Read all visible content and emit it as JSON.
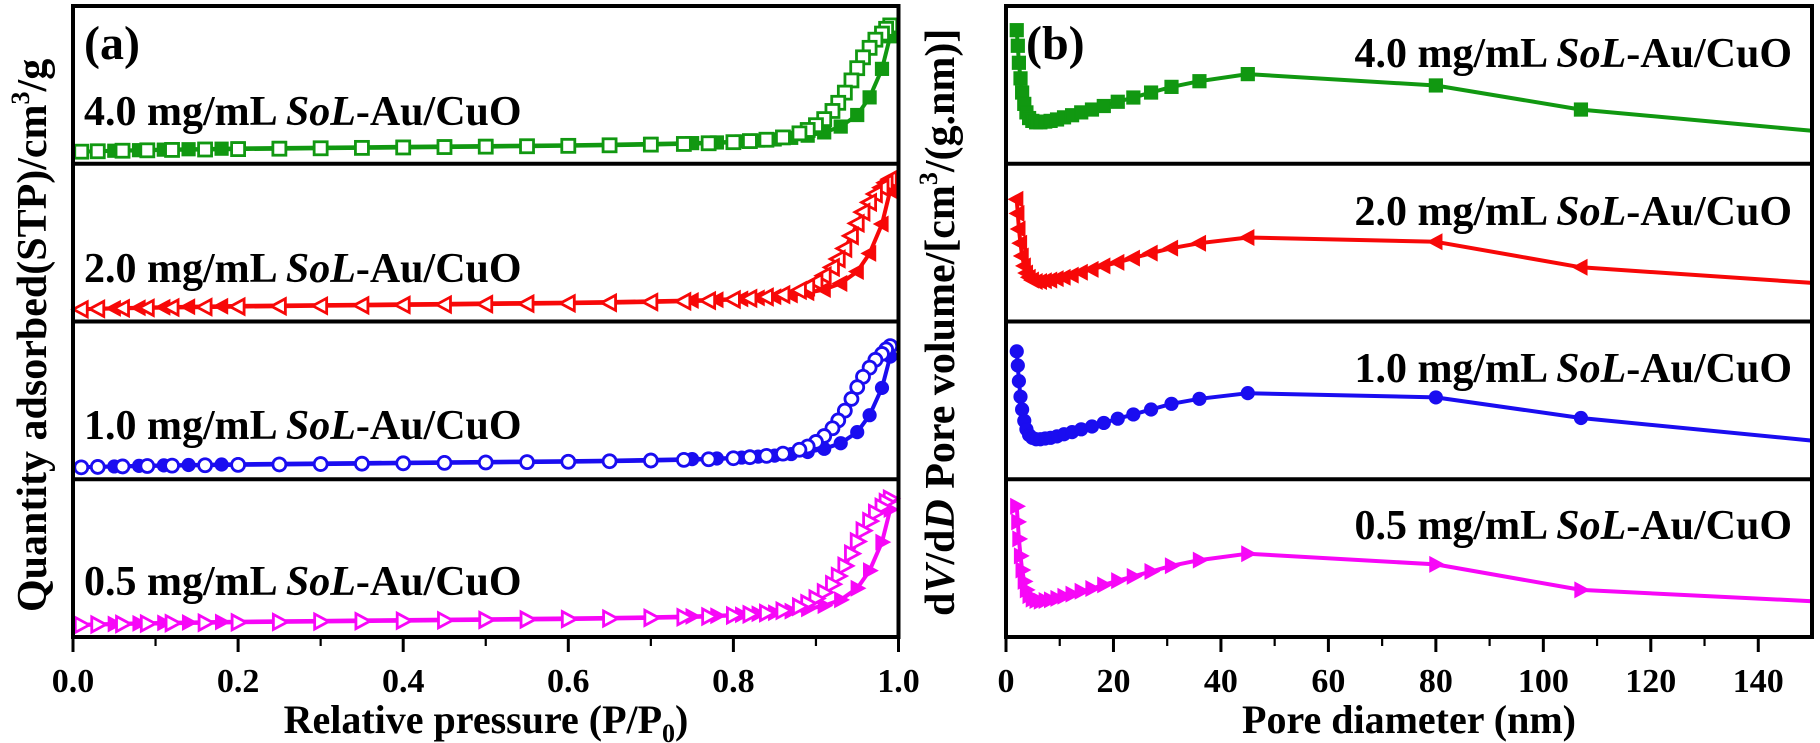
{
  "figure": {
    "background": "#ffffff",
    "panel_a": {
      "letter": "(a)",
      "ylabel": {
        "p1": "Quantity adsorbed(STP)/cm",
        "sup": "3",
        "p2": "/g"
      },
      "xlabel": {
        "p1": "Relative pressure (P/P",
        "sub": "0",
        "p2": ")"
      }
    },
    "panel_b": {
      "letter": "(b)",
      "ylabel": {
        "p1": "d",
        "i1": "V",
        "p2": "/d",
        "i2": "D",
        "p3": " Pore volume/[cm",
        "sup": "3",
        "p4": "/(g.nm)]"
      },
      "xlabel": {
        "p1": "Pore diameter (nm)"
      }
    }
  },
  "chart_data": [
    {
      "type": "line",
      "panel": "a",
      "description": "N2 adsorption-desorption isotherms; four stacked sub-panels sharing the x-axis. No numeric y-axis is shown, so y values are relative (0-1) within each sub-panel. Filled markers = adsorption branch, open markers = desorption branch (hysteresis near P/P0 = 0.9-1.0).",
      "xlabel": "Relative pressure (P/P0)",
      "ylabel": "Quantity adsorbed(STP)/cm3/g",
      "xlim": [
        0.0,
        1.0
      ],
      "xticks": [
        "0.0",
        "0.2",
        "0.4",
        "0.6",
        "0.8",
        "1.0"
      ],
      "minor_tick": 0.1,
      "grid": false,
      "legend": "labels drawn inside each sub-panel",
      "shared": {
        "adsorption": {
          "x": [
            0.01,
            0.03,
            0.05,
            0.06,
            0.08,
            0.09,
            0.11,
            0.12,
            0.14,
            0.16,
            0.18,
            0.2,
            0.25,
            0.3,
            0.35,
            0.4,
            0.45,
            0.5,
            0.55,
            0.6,
            0.65,
            0.7,
            0.75,
            0.78,
            0.81,
            0.83,
            0.85,
            0.87,
            0.89,
            0.91,
            0.93,
            0.95,
            0.965,
            0.98,
            0.99
          ],
          "y": [
            0.03,
            0.034,
            0.037,
            0.039,
            0.041,
            0.043,
            0.045,
            0.046,
            0.048,
            0.05,
            0.052,
            0.054,
            0.057,
            0.06,
            0.063,
            0.066,
            0.069,
            0.072,
            0.075,
            0.078,
            0.082,
            0.087,
            0.093,
            0.098,
            0.105,
            0.112,
            0.12,
            0.132,
            0.148,
            0.172,
            0.215,
            0.3,
            0.43,
            0.64,
            0.88
          ]
        },
        "desorption": {
          "x": [
            0.99,
            0.985,
            0.98,
            0.972,
            0.965,
            0.957,
            0.95,
            0.943,
            0.935,
            0.927,
            0.92,
            0.91,
            0.9,
            0.89,
            0.88,
            0.86,
            0.84,
            0.82,
            0.8,
            0.77,
            0.74,
            0.7,
            0.65,
            0.6,
            0.55,
            0.5,
            0.45,
            0.4,
            0.35,
            0.3,
            0.25,
            0.2,
            0.16,
            0.12,
            0.09,
            0.06,
            0.03,
            0.01
          ],
          "y": [
            0.96,
            0.935,
            0.9,
            0.855,
            0.795,
            0.725,
            0.645,
            0.555,
            0.465,
            0.39,
            0.33,
            0.27,
            0.225,
            0.19,
            0.165,
            0.135,
            0.118,
            0.108,
            0.1,
            0.092,
            0.087,
            0.082,
            0.077,
            0.073,
            0.07,
            0.067,
            0.064,
            0.061,
            0.058,
            0.055,
            0.052,
            0.049,
            0.046,
            0.043,
            0.04,
            0.037,
            0.033,
            0.03
          ]
        }
      },
      "subpanels": [
        {
          "id": "4.0",
          "label_prefix": "4.0 mg/mL ",
          "label_italic": "SoL",
          "label_suffix": "-Au/CuO",
          "color": "#119811",
          "marker": "square",
          "scale": 1.0
        },
        {
          "id": "2.0",
          "label_prefix": "2.0 mg/mL ",
          "label_italic": "SoL",
          "label_suffix": "-Au/CuO",
          "color": "#f70808",
          "marker": "tri_left",
          "scale": 1.03
        },
        {
          "id": "1.0",
          "label_prefix": "1.0 mg/mL ",
          "label_italic": "SoL",
          "label_suffix": "-Au/CuO",
          "color": "#1a0df0",
          "marker": "circle",
          "scale": 0.96
        },
        {
          "id": "0.5",
          "label_prefix": "0.5 mg/mL ",
          "label_italic": "SoL",
          "label_suffix": "-Au/CuO",
          "color": "#f707f7",
          "marker": "tri_right",
          "scale": 1.0
        }
      ]
    },
    {
      "type": "line",
      "panel": "b",
      "description": "BJH pore size distribution curves; four stacked sub-panels sharing the x-axis. No numeric y-axis is shown, so y values are relative (0-1) within each sub-panel. Each curve: sharp drop below ~5 nm, minimum ~6-10 nm, broad maximum ~45 nm, gradual decline to 150 nm.",
      "xlabel": "Pore diameter (nm)",
      "ylabel": "dV/dD Pore volume/[cm3/(g.nm)]",
      "xlim": [
        0,
        150
      ],
      "xticks": [
        "0",
        "20",
        "40",
        "60",
        "80",
        "100",
        "120",
        "140"
      ],
      "minor_tick": 10,
      "grid": false,
      "legend": "labels drawn inside each sub-panel",
      "x": [
        2.0,
        2.2,
        2.4,
        2.7,
        3.0,
        3.4,
        3.8,
        4.3,
        4.9,
        5.6,
        6.4,
        7.3,
        8.3,
        9.5,
        10.8,
        12.3,
        14.0,
        16.0,
        18.2,
        20.8,
        23.7,
        27.0,
        30.8,
        36.0,
        45.0,
        80.0,
        107.0,
        150.0
      ],
      "subpanels": [
        {
          "id": "4.0",
          "label_prefix": "4.0 mg/mL ",
          "label_italic": "SoL",
          "label_suffix": "-Au/CuO",
          "color": "#119811",
          "marker": "square",
          "y": [
            0.9,
            0.79,
            0.67,
            0.56,
            0.46,
            0.38,
            0.32,
            0.28,
            0.26,
            0.25,
            0.25,
            0.255,
            0.26,
            0.27,
            0.285,
            0.3,
            0.32,
            0.34,
            0.365,
            0.395,
            0.425,
            0.46,
            0.5,
            0.54,
            0.59,
            0.51,
            0.34,
            0.19
          ]
        },
        {
          "id": "2.0",
          "label_prefix": "2.0 mg/mL ",
          "label_italic": "SoL",
          "label_suffix": "-Au/CuO",
          "color": "#f70808",
          "marker": "tri_left",
          "y": [
            0.82,
            0.72,
            0.61,
            0.51,
            0.42,
            0.35,
            0.3,
            0.27,
            0.25,
            0.24,
            0.24,
            0.245,
            0.25,
            0.26,
            0.27,
            0.285,
            0.305,
            0.325,
            0.35,
            0.375,
            0.405,
            0.44,
            0.475,
            0.51,
            0.55,
            0.52,
            0.34,
            0.23
          ]
        },
        {
          "id": "1.0",
          "label_prefix": "1.0 mg/mL ",
          "label_italic": "SoL",
          "label_suffix": "-Au/CuO",
          "color": "#1a0df0",
          "marker": "circle",
          "y": [
            0.86,
            0.76,
            0.65,
            0.54,
            0.45,
            0.37,
            0.31,
            0.27,
            0.25,
            0.24,
            0.24,
            0.245,
            0.25,
            0.26,
            0.275,
            0.29,
            0.31,
            0.33,
            0.355,
            0.385,
            0.415,
            0.45,
            0.49,
            0.525,
            0.565,
            0.535,
            0.39,
            0.23
          ]
        },
        {
          "id": "0.5",
          "label_prefix": "0.5 mg/mL ",
          "label_italic": "SoL",
          "label_suffix": "-Au/CuO",
          "color": "#f707f7",
          "marker": "tri_right",
          "y": [
            0.88,
            0.77,
            0.65,
            0.53,
            0.43,
            0.35,
            0.29,
            0.25,
            0.225,
            0.215,
            0.21,
            0.215,
            0.22,
            0.23,
            0.245,
            0.26,
            0.28,
            0.3,
            0.325,
            0.355,
            0.385,
            0.42,
            0.46,
            0.5,
            0.545,
            0.47,
            0.29,
            0.21
          ]
        }
      ]
    }
  ]
}
